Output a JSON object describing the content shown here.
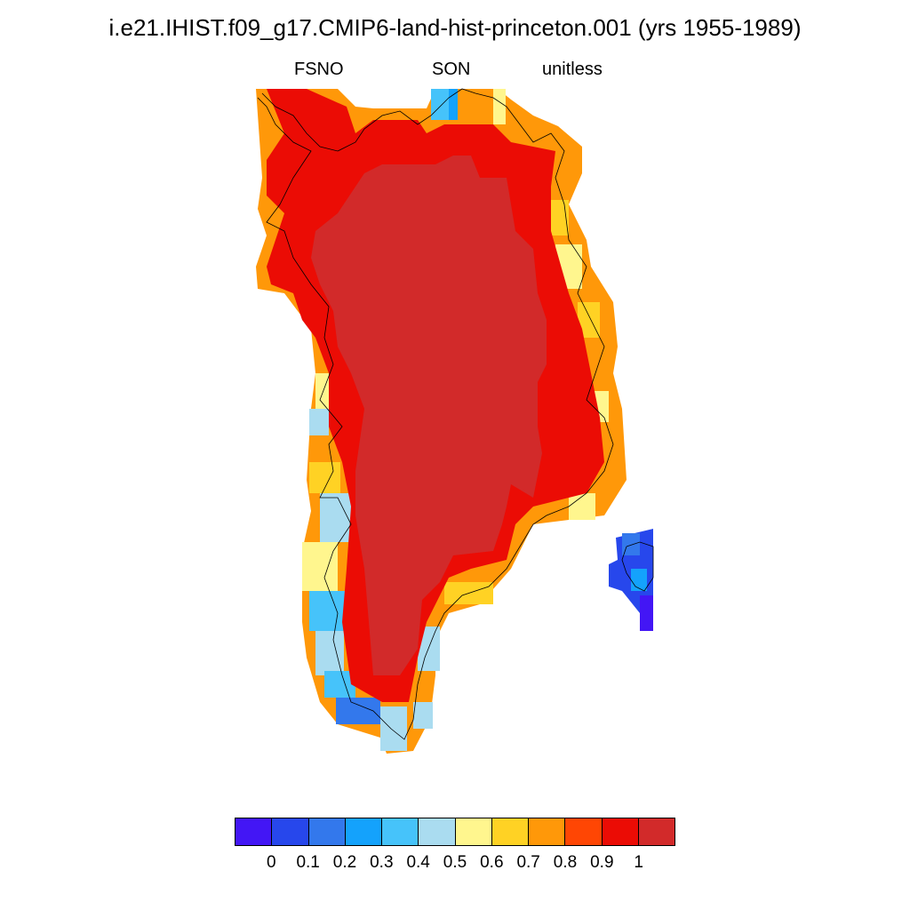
{
  "title": "i.e21.IHIST.f09_g17.CMIP6-land-hist-princeton.001 (yrs 1955-1989)",
  "subtitles": {
    "variable": "FSNO",
    "season": "SON",
    "units": "unitless"
  },
  "colorbar": {
    "colors": [
      "#4316f5",
      "#2747ec",
      "#3378ec",
      "#14a2fc",
      "#46c3fa",
      "#aadcf0",
      "#fff68e",
      "#ffd224",
      "#ff9809",
      "#ff4604",
      "#eb0c05",
      "#d22a2a"
    ],
    "ticks": [
      "0",
      "0.1",
      "0.2",
      "0.3",
      "0.4",
      "0.5",
      "0.6",
      "0.7",
      "0.8",
      "0.9",
      "1"
    ]
  },
  "map_regions": [
    {
      "name": "greenland-interior",
      "level": 11
    },
    {
      "name": "greenland-margin",
      "level": 10
    },
    {
      "name": "east-coast-fringe",
      "level": 8
    },
    {
      "name": "southwest-coast",
      "level": 5
    },
    {
      "name": "iceland",
      "level": 2
    }
  ]
}
